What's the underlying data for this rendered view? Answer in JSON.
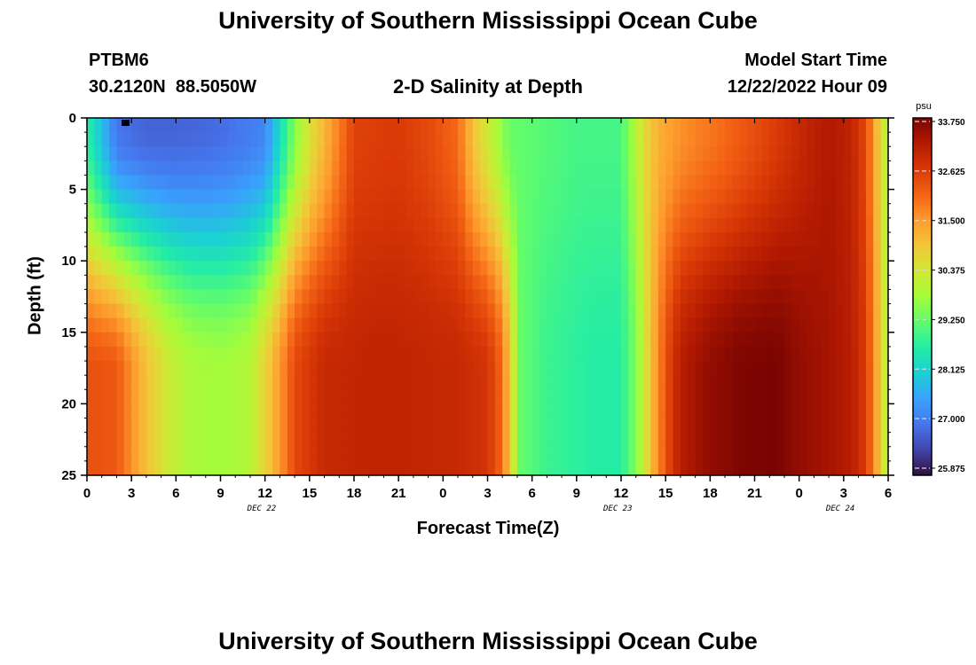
{
  "header": {
    "title": "University of Southern Mississippi Ocean Cube",
    "station": "PTBM6",
    "location": "30.2120N  88.5050W",
    "subtitle": "2-D Salinity at Depth",
    "model_start_label": "Model Start Time",
    "model_start_value": "12/22/2022 Hour 09"
  },
  "footer": {
    "title": "University of Southern Mississippi Ocean Cube"
  },
  "colors": {
    "colormap": [
      "#30123b",
      "#4145ab",
      "#4675ed",
      "#39a2fc",
      "#1bcfd4",
      "#24eca6",
      "#61fc6c",
      "#a4fc3b",
      "#d1e834",
      "#f3c63a",
      "#fe9b2d",
      "#f36315",
      "#d93806",
      "#b11901",
      "#7a0402"
    ]
  },
  "chart_data": {
    "type": "heatmap",
    "title": "2-D Salinity at Depth",
    "xlabel": "Forecast Time(Z)",
    "ylabel": "Depth (ft)",
    "x_tick_labels": [
      "0",
      "3",
      "6",
      "9",
      "12",
      "15",
      "18",
      "21",
      "0",
      "3",
      "6",
      "9",
      "12",
      "15",
      "18",
      "21",
      "0",
      "3",
      "6"
    ],
    "x_range_hours": [
      0,
      54
    ],
    "date_labels": [
      {
        "text": "DEC 22",
        "hour": 12
      },
      {
        "text": "DEC 23",
        "hour": 36
      },
      {
        "text": "DEC 24",
        "hour": 51
      }
    ],
    "y_ticks": [
      "0",
      "5",
      "10",
      "15",
      "20",
      "25"
    ],
    "y_range_ft": [
      0,
      25
    ],
    "colorbar": {
      "unit": "psu",
      "min": 25.875,
      "max": 33.75,
      "tick_labels": [
        "33.750",
        "32.625",
        "31.500",
        "30.375",
        "29.250",
        "28.125",
        "27.000",
        "25.875"
      ]
    },
    "surface_profile": [
      [
        0,
        28.8
      ],
      [
        2,
        27.0
      ],
      [
        4,
        26.8
      ],
      [
        6,
        26.8
      ],
      [
        9,
        26.9
      ],
      [
        12,
        27.2
      ],
      [
        14,
        29.5
      ],
      [
        15,
        30.5
      ],
      [
        17,
        31.8
      ],
      [
        18,
        32.5
      ],
      [
        21,
        32.6
      ],
      [
        23,
        32.4
      ],
      [
        25,
        32.0
      ],
      [
        26,
        31.0
      ],
      [
        27.5,
        30.0
      ],
      [
        28.5,
        29.3
      ],
      [
        33,
        29.0
      ],
      [
        36,
        29.0
      ],
      [
        37,
        30.0
      ],
      [
        37.5,
        30.6
      ],
      [
        38.5,
        31.2
      ],
      [
        40,
        31.6
      ],
      [
        43,
        32.0
      ],
      [
        46,
        32.5
      ],
      [
        48,
        32.9
      ],
      [
        50,
        33.2
      ],
      [
        51.5,
        33.0
      ],
      [
        52.5,
        32.4
      ],
      [
        53.3,
        31.0
      ],
      [
        54,
        29.8
      ]
    ],
    "bottom_profile": [
      [
        0,
        32.3
      ],
      [
        2,
        32.2
      ],
      [
        4,
        31.0
      ],
      [
        5.5,
        30.3
      ],
      [
        7,
        29.9
      ],
      [
        9,
        29.8
      ],
      [
        11,
        30.0
      ],
      [
        13,
        31.5
      ],
      [
        14,
        32.4
      ],
      [
        16,
        32.9
      ],
      [
        20,
        33.0
      ],
      [
        25,
        32.9
      ],
      [
        27,
        32.7
      ],
      [
        28,
        32.0
      ],
      [
        28.6,
        30.6
      ],
      [
        29.2,
        29.3
      ],
      [
        31,
        28.9
      ],
      [
        34,
        28.7
      ],
      [
        36,
        28.7
      ],
      [
        37,
        29.5
      ],
      [
        38,
        31.0
      ],
      [
        39,
        32.3
      ],
      [
        40,
        33.1
      ],
      [
        42,
        33.5
      ],
      [
        44,
        33.7
      ],
      [
        46.5,
        33.75
      ],
      [
        48,
        33.5
      ],
      [
        50,
        33.3
      ],
      [
        51.5,
        33.1
      ],
      [
        52.5,
        32.6
      ],
      [
        53.3,
        31.2
      ],
      [
        54,
        29.8
      ]
    ]
  }
}
